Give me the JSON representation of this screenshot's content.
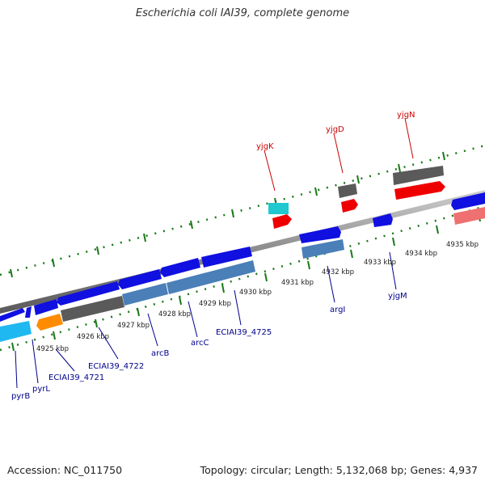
{
  "title": "Escherichia coli IAI39, complete genome",
  "footer": {
    "accession": "Accession: NC_011750",
    "summary": "Topology: circular; Length: 5,132,068 bp; Genes: 4,937"
  },
  "colors": {
    "backbone": "#8c8c8c",
    "tick": "#1a7a1a",
    "forward_label": "#cc0000",
    "reverse_label": "#00008b",
    "blue_gene": "#1010e0",
    "red_gene": "#ee0000",
    "cyan_gene": "#20c8d0",
    "lightblue_gene": "#20b8f0",
    "orange_gene": "#ff8c00",
    "gray_gene": "#5a5a5a",
    "steel_gene": "#4a7fb8",
    "pink_gene": "#ee7070"
  },
  "forward_labels": [
    "yjgK",
    "yjgD",
    "yjgN"
  ],
  "reverse_labels": [
    "pyrB",
    "pyrL",
    "ECIAI39_4721",
    "ECIAI39_4722",
    "arcB",
    "arcC",
    "ECIAI39_4725",
    "argI",
    "yjgM"
  ],
  "kbp_labels": [
    "4925 kbp",
    "4926 kbp",
    "4927 kbp",
    "4928 kbp",
    "4929 kbp",
    "4930 kbp",
    "4931 kbp",
    "4932 kbp",
    "4933 kbp",
    "4934 kbp",
    "4935 kbp"
  ]
}
